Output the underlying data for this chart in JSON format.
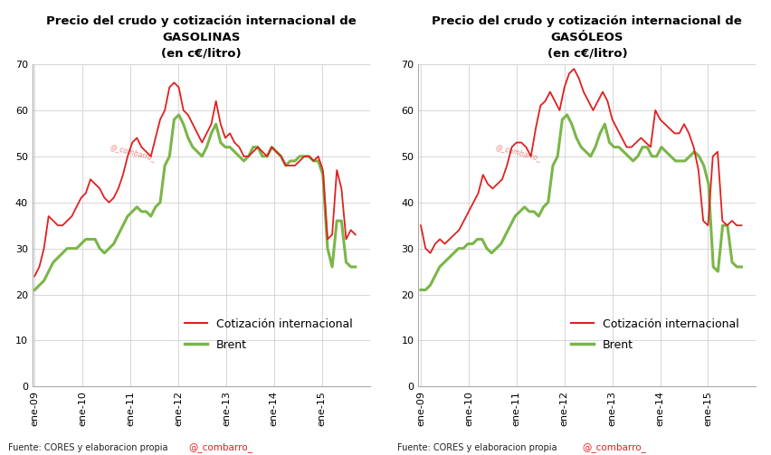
{
  "title1": "Precio del crudo y cotización internacional de\nGASOLINAS\n(en c€/litro)",
  "title2": "Precio del crudo y cotización internacional de\nGASÓLEOS\n(en c€/litro)",
  "source_text": "Fuente: CORES y elaboracion propia",
  "watermark": "@_combarro_",
  "color_red": "#e02020",
  "color_green": "#7ab648",
  "legend_red": "Cotización internacional",
  "legend_green": "Brent",
  "ylim": [
    0,
    70
  ],
  "yticks": [
    0,
    10,
    20,
    30,
    40,
    50,
    60,
    70
  ],
  "xtick_labels": [
    "ene-09",
    "ene-10",
    "ene-11",
    "ene-12",
    "ene-13",
    "ene-14",
    "ene-15"
  ],
  "gasolinas_red": [
    24,
    26,
    30,
    37,
    36,
    35,
    35,
    36,
    37,
    39,
    41,
    42,
    45,
    44,
    43,
    41,
    40,
    41,
    43,
    46,
    50,
    53,
    54,
    52,
    51,
    50,
    54,
    58,
    60,
    65,
    66,
    65,
    60,
    59,
    57,
    55,
    53,
    55,
    57,
    62,
    57,
    54,
    55,
    53,
    52,
    50,
    50,
    51,
    52,
    51,
    50,
    52,
    51,
    50,
    48,
    48,
    48,
    49,
    50,
    50,
    49,
    50,
    47,
    32,
    33,
    47,
    43,
    32,
    34,
    33
  ],
  "gasolinas_green": [
    21,
    22,
    23,
    25,
    27,
    28,
    29,
    30,
    30,
    30,
    31,
    32,
    32,
    32,
    30,
    29,
    30,
    31,
    33,
    35,
    37,
    38,
    39,
    38,
    38,
    37,
    39,
    40,
    48,
    50,
    58,
    59,
    57,
    54,
    52,
    51,
    50,
    52,
    55,
    57,
    53,
    52,
    52,
    51,
    50,
    49,
    50,
    52,
    52,
    50,
    50,
    52,
    51,
    50,
    48,
    49,
    49,
    50,
    50,
    50,
    49,
    49,
    46,
    30,
    26,
    36,
    36,
    27,
    26,
    26
  ],
  "gasoleos_red": [
    35,
    30,
    29,
    31,
    32,
    31,
    32,
    33,
    34,
    36,
    38,
    40,
    42,
    46,
    44,
    43,
    44,
    45,
    48,
    52,
    53,
    53,
    52,
    50,
    56,
    61,
    62,
    64,
    62,
    60,
    65,
    68,
    69,
    67,
    64,
    62,
    60,
    62,
    64,
    62,
    58,
    56,
    54,
    52,
    52,
    53,
    54,
    53,
    52,
    60,
    58,
    57,
    56,
    55,
    55,
    57,
    55,
    52,
    47,
    36,
    35,
    50,
    51,
    36,
    35,
    36,
    35,
    35
  ],
  "gasoleos_green": [
    21,
    21,
    22,
    24,
    26,
    27,
    28,
    29,
    30,
    30,
    31,
    31,
    32,
    32,
    30,
    29,
    30,
    31,
    33,
    35,
    37,
    38,
    39,
    38,
    38,
    37,
    39,
    40,
    48,
    50,
    58,
    59,
    57,
    54,
    52,
    51,
    50,
    52,
    55,
    57,
    53,
    52,
    52,
    51,
    50,
    49,
    50,
    52,
    52,
    50,
    50,
    52,
    51,
    50,
    49,
    49,
    49,
    50,
    51,
    50,
    48,
    44,
    26,
    25,
    35,
    35,
    27,
    26,
    26
  ],
  "background_color": "#ffffff",
  "grid_color": "#d0d0d0",
  "title_fontsize": 9.5,
  "label_fontsize": 8,
  "legend_fontsize": 9,
  "source_fontsize": 7
}
